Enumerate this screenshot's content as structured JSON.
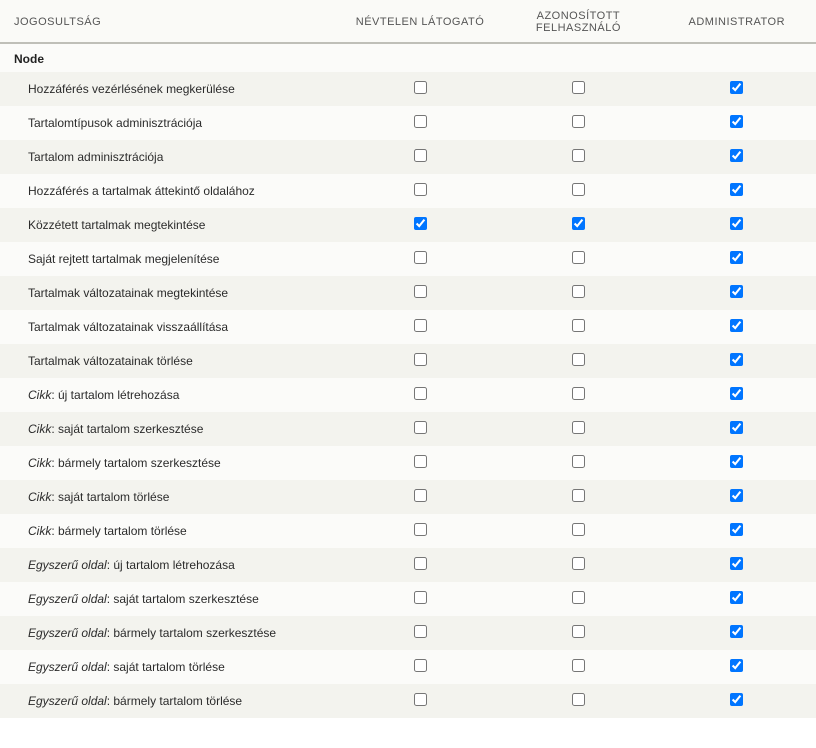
{
  "headers": {
    "permission": "JOGOSULTSÁG",
    "anon": "NÉVTELEN LÁTOGATÓ",
    "auth": "AZONOSÍTOTT FELHASZNÁLÓ",
    "admin": "ADMINISTRATOR"
  },
  "section": "Node",
  "permissions": [
    {
      "label": "Hozzáférés vezérlésének megkerülése",
      "italic_prefix": null,
      "anon": false,
      "auth": false,
      "admin": true
    },
    {
      "label": "Tartalomtípusok adminisztrációja",
      "italic_prefix": null,
      "anon": false,
      "auth": false,
      "admin": true
    },
    {
      "label": "Tartalom adminisztrációja",
      "italic_prefix": null,
      "anon": false,
      "auth": false,
      "admin": true
    },
    {
      "label": "Hozzáférés a tartalmak áttekintő oldalához",
      "italic_prefix": null,
      "anon": false,
      "auth": false,
      "admin": true
    },
    {
      "label": "Közzétett tartalmak megtekintése",
      "italic_prefix": null,
      "anon": true,
      "auth": true,
      "admin": true
    },
    {
      "label": "Saját rejtett tartalmak megjelenítése",
      "italic_prefix": null,
      "anon": false,
      "auth": false,
      "admin": true
    },
    {
      "label": "Tartalmak változatainak megtekintése",
      "italic_prefix": null,
      "anon": false,
      "auth": false,
      "admin": true
    },
    {
      "label": "Tartalmak változatainak visszaállítása",
      "italic_prefix": null,
      "anon": false,
      "auth": false,
      "admin": true
    },
    {
      "label": "Tartalmak változatainak törlése",
      "italic_prefix": null,
      "anon": false,
      "auth": false,
      "admin": true
    },
    {
      "label": ": új tartalom létrehozása",
      "italic_prefix": "Cikk",
      "anon": false,
      "auth": false,
      "admin": true
    },
    {
      "label": ": saját tartalom szerkesztése",
      "italic_prefix": "Cikk",
      "anon": false,
      "auth": false,
      "admin": true
    },
    {
      "label": ": bármely tartalom szerkesztése",
      "italic_prefix": "Cikk",
      "anon": false,
      "auth": false,
      "admin": true
    },
    {
      "label": ": saját tartalom törlése",
      "italic_prefix": "Cikk",
      "anon": false,
      "auth": false,
      "admin": true
    },
    {
      "label": ": bármely tartalom törlése",
      "italic_prefix": "Cikk",
      "anon": false,
      "auth": false,
      "admin": true
    },
    {
      "label": ": új tartalom létrehozása",
      "italic_prefix": "Egyszerű oldal",
      "anon": false,
      "auth": false,
      "admin": true
    },
    {
      "label": ": saját tartalom szerkesztése",
      "italic_prefix": "Egyszerű oldal",
      "anon": false,
      "auth": false,
      "admin": true
    },
    {
      "label": ": bármely tartalom szerkesztése",
      "italic_prefix": "Egyszerű oldal",
      "anon": false,
      "auth": false,
      "admin": true
    },
    {
      "label": ": saját tartalom törlése",
      "italic_prefix": "Egyszerű oldal",
      "anon": false,
      "auth": false,
      "admin": true
    },
    {
      "label": ": bármely tartalom törlése",
      "italic_prefix": "Egyszerű oldal",
      "anon": false,
      "auth": false,
      "admin": true
    }
  ]
}
